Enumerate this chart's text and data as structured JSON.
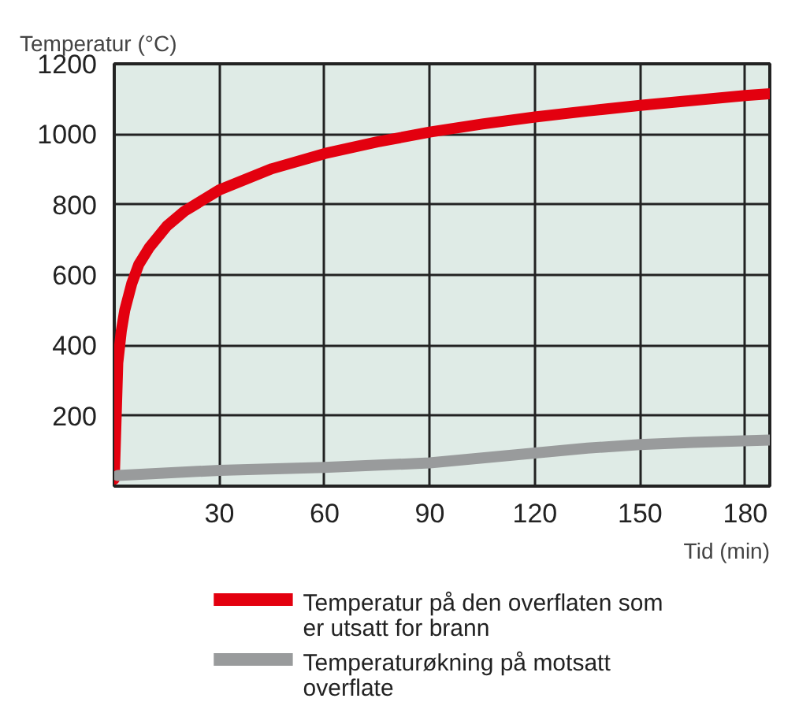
{
  "chart_data": {
    "type": "line",
    "ylabel": "Temperatur (°C)",
    "xlabel": "Tid (min)",
    "xlim": [
      0,
      187
    ],
    "xticks": [
      30,
      60,
      90,
      120,
      150,
      180
    ],
    "ylim": [
      0,
      1200
    ],
    "yticks": [
      {
        "value": 0,
        "label": null
      },
      200,
      400,
      600,
      800,
      1000,
      1200
    ],
    "grid": true,
    "legend": "bottom",
    "marker": "none",
    "line_style": "solid",
    "series": [
      {
        "name": "Temperatur på den overflaten som er utsatt for brann",
        "color": "#e3000f",
        "x": [
          0,
          1,
          2,
          3,
          5,
          7,
          10,
          15,
          20,
          30,
          45,
          60,
          75,
          90,
          105,
          120,
          135,
          150,
          165,
          180,
          187
        ],
        "values": [
          20,
          350,
          440,
          500,
          576,
          630,
          678,
          739,
          781,
          842,
          902,
          945,
          978,
          1006,
          1029,
          1049,
          1066,
          1082,
          1096,
          1110,
          1115
        ]
      },
      {
        "name": "Temperaturøkning på motsatt overflate",
        "color": "#999b9c",
        "x": [
          1,
          30,
          60,
          90,
          105,
          120,
          135,
          150,
          165,
          187
        ],
        "values": [
          30,
          45,
          53,
          66,
          80,
          94,
          108,
          118,
          124,
          131
        ]
      }
    ]
  }
}
